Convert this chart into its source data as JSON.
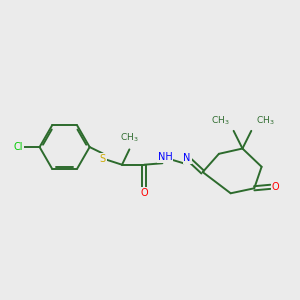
{
  "background_color": "#ebebeb",
  "bond_color": "#2d6b2d",
  "heteroatom_colors": {
    "Cl": "#00cc00",
    "S": "#ccaa00",
    "O": "#ff0000",
    "N": "#0000ff"
  },
  "figsize": [
    3.0,
    3.0
  ],
  "dpi": 100,
  "lw": 1.4,
  "fontsize": 7.0
}
